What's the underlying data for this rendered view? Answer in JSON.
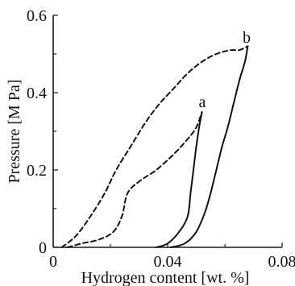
{
  "chart_data": {
    "type": "line",
    "title": "",
    "xlabel": "Hydrogen content [wt. %]",
    "ylabel": "Pressure [M Pa]",
    "xlim": [
      0,
      0.08
    ],
    "ylim": [
      0,
      0.6
    ],
    "x_ticks": [
      0,
      0.04,
      0.08
    ],
    "x_tick_labels": [
      "0",
      "0.04",
      "0.08"
    ],
    "y_ticks": [
      0,
      0.2,
      0.4,
      0.6
    ],
    "y_tick_labels": [
      "0",
      "0.2",
      "0.4",
      "0.6"
    ],
    "grid": false,
    "series": [
      {
        "label": "a",
        "style": "solid",
        "x": [
          0.036,
          0.04,
          0.044,
          0.047,
          0.048,
          0.049,
          0.05,
          0.051,
          0.052
        ],
        "y": [
          0.0,
          0.01,
          0.04,
          0.08,
          0.14,
          0.2,
          0.26,
          0.31,
          0.35
        ]
      },
      {
        "label": "a",
        "style": "dashed",
        "x": [
          0.005,
          0.01,
          0.016,
          0.021,
          0.024,
          0.026,
          0.03,
          0.036,
          0.042,
          0.047,
          0.05,
          0.052
        ],
        "y": [
          0.0,
          0.01,
          0.02,
          0.04,
          0.08,
          0.14,
          0.17,
          0.2,
          0.24,
          0.28,
          0.31,
          0.35
        ]
      },
      {
        "label": "b",
        "style": "solid",
        "x": [
          0.041,
          0.046,
          0.05,
          0.053,
          0.055,
          0.057,
          0.059,
          0.061,
          0.063,
          0.065,
          0.067,
          0.068
        ],
        "y": [
          0.0,
          0.01,
          0.04,
          0.09,
          0.14,
          0.2,
          0.26,
          0.31,
          0.37,
          0.43,
          0.48,
          0.52
        ]
      },
      {
        "label": "b",
        "style": "dashed",
        "x": [
          0.003,
          0.008,
          0.013,
          0.018,
          0.022,
          0.027,
          0.032,
          0.037,
          0.042,
          0.047,
          0.052,
          0.057,
          0.062,
          0.065,
          0.068
        ],
        "y": [
          0.0,
          0.03,
          0.08,
          0.14,
          0.2,
          0.26,
          0.32,
          0.37,
          0.41,
          0.45,
          0.48,
          0.5,
          0.51,
          0.51,
          0.52
        ]
      }
    ],
    "annotations": [
      {
        "text": "a",
        "x": 0.0515,
        "y": 0.355
      },
      {
        "text": "b",
        "x": 0.0675,
        "y": 0.525
      }
    ]
  }
}
